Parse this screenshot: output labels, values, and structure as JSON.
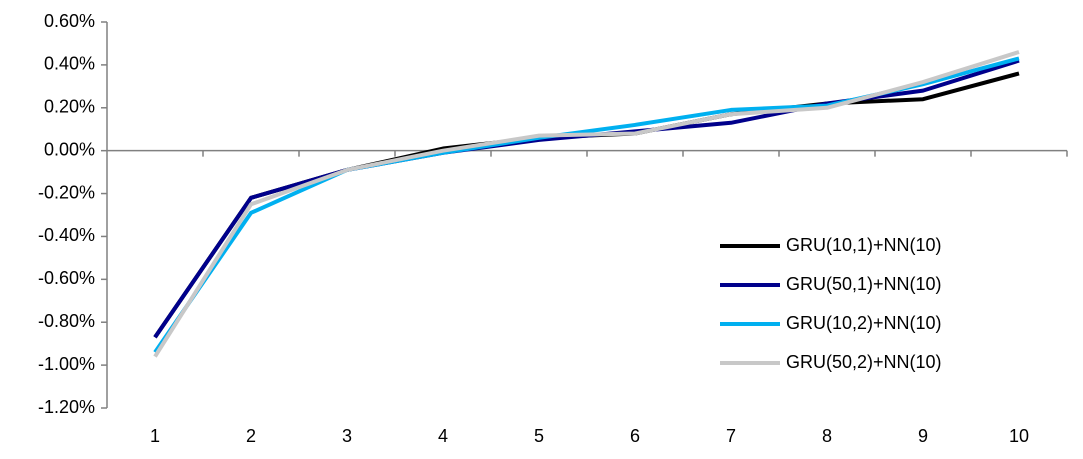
{
  "chart_data": {
    "type": "line",
    "categories": [
      "1",
      "2",
      "3",
      "4",
      "5",
      "6",
      "7",
      "8",
      "9",
      "10"
    ],
    "series": [
      {
        "name": "GRU(10,1)+NN(10)",
        "color": "#000000",
        "values": [
          -0.87,
          -0.22,
          -0.09,
          0.01,
          0.06,
          0.08,
          0.17,
          0.22,
          0.24,
          0.36
        ]
      },
      {
        "name": "GRU(50,1)+NN(10)",
        "color": "#00008b",
        "values": [
          -0.87,
          -0.22,
          -0.09,
          -0.01,
          0.05,
          0.09,
          0.13,
          0.22,
          0.28,
          0.42
        ]
      },
      {
        "name": "GRU(10,2)+NN(10)",
        "color": "#00b0f0",
        "values": [
          -0.94,
          -0.29,
          -0.09,
          -0.01,
          0.06,
          0.12,
          0.19,
          0.21,
          0.31,
          0.43
        ]
      },
      {
        "name": "GRU(50,2)+NN(10)",
        "color": "#c8c8c8",
        "values": [
          -0.96,
          -0.25,
          -0.09,
          0.0,
          0.07,
          0.08,
          0.17,
          0.2,
          0.32,
          0.46
        ]
      }
    ],
    "ylim": [
      -1.2,
      0.6
    ],
    "yticks": [
      {
        "value": -1.2,
        "label": "-1.20%"
      },
      {
        "value": -1.0,
        "label": "-1.00%"
      },
      {
        "value": -0.8,
        "label": "-0.80%"
      },
      {
        "value": -0.6,
        "label": "-0.60%"
      },
      {
        "value": -0.4,
        "label": "-0.40%"
      },
      {
        "value": -0.2,
        "label": "-0.20%"
      },
      {
        "value": 0,
        "label": "0.00%"
      },
      {
        "value": 0.2,
        "label": "0.20%"
      },
      {
        "value": 0.4,
        "label": "0.40%"
      },
      {
        "value": 0.6,
        "label": "0.60%"
      }
    ],
    "legend": "lower right"
  }
}
